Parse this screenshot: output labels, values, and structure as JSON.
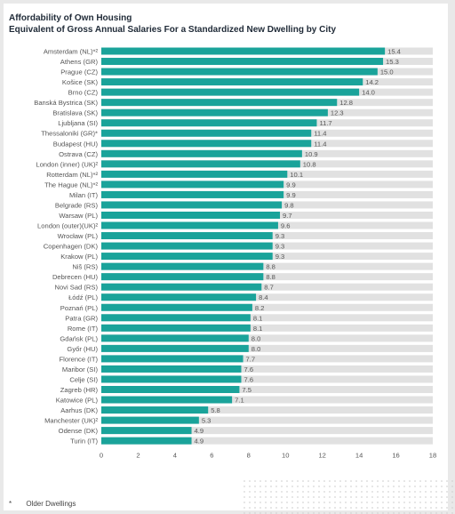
{
  "chart_data": {
    "type": "bar",
    "orientation": "horizontal",
    "title": "Affordability of Own Housing",
    "subtitle": "Equivalent of Gross Annual Salaries For a Standardized New Dwelling by City",
    "categories": [
      "Amsterdam (NL)*²",
      "Athens (GR)",
      "Prague (CZ)",
      "Košice (SK)",
      "Brno (CZ)",
      "Banská Bystrica (SK)",
      "Bratislava (SK)",
      "Ljubljana (SI)",
      "Thessaloniki (GR)*",
      "Budapest (HU)",
      "Ostrava (CZ)",
      "London (inner) (UK)²",
      "Rotterdam (NL)*²",
      "The Hague (NL)*²",
      "Milan (IT)",
      "Belgrade (RS)",
      "Warsaw (PL)",
      "London (outer)(UK)²",
      "Wrocław (PL)",
      "Copenhagen (DK)",
      "Krakow (PL)",
      "Niš (RS)",
      "Debrecen (HU)",
      "Novi Sad (RS)",
      "Łódź (PL)",
      "Poznań (PL)",
      "Patra (GR)",
      "Rome (IT)",
      "Gdańsk (PL)",
      "Győr (HU)",
      "Florence (IT)",
      "Maribor (SI)",
      "Celje (SI)",
      "Zagreb (HR)",
      "Katowice (PL)",
      "Aarhus (DK)",
      "Manchester (UK)²",
      "Odense (DK)",
      "Turin (IT)"
    ],
    "values": [
      15.4,
      15.3,
      15.0,
      14.2,
      14.0,
      12.8,
      12.3,
      11.7,
      11.4,
      11.4,
      10.9,
      10.8,
      10.1,
      9.9,
      9.9,
      9.8,
      9.7,
      9.6,
      9.3,
      9.3,
      9.3,
      8.8,
      8.8,
      8.7,
      8.4,
      8.2,
      8.1,
      8.1,
      8.0,
      8.0,
      7.7,
      7.6,
      7.6,
      7.5,
      7.1,
      5.8,
      5.3,
      4.9,
      4.9
    ],
    "value_labels": [
      "15.4",
      "15.3",
      "15.0",
      "14.2",
      "14.0",
      "12.8",
      "12.3",
      "11.7",
      "11.4",
      "11.4",
      "10.9",
      "10.8",
      "10.1",
      "9.9",
      "9.9",
      "9.8",
      "9.7",
      "9.6",
      "9.3",
      "9.3",
      "9.3",
      "8.8",
      "8.8",
      "8.7",
      "8.4",
      "8.2",
      "8.1",
      "8.1",
      "8.0",
      "8.0",
      "7.7",
      "7.6",
      "7.6",
      "7.5",
      "7.1",
      "5.8",
      "5.3",
      "4.9",
      "4.9"
    ],
    "xlim": [
      0,
      18
    ],
    "xticks": [
      "0",
      "2",
      "4",
      "6",
      "8",
      "10",
      "12",
      "14",
      "16",
      "18"
    ],
    "grid": false,
    "background_track": true,
    "colors": {
      "bar": "#1aa39a",
      "track": "#e1e1e1",
      "label": "#555555",
      "value": "#555555"
    }
  },
  "footnote": {
    "symbol": "*",
    "text": "Older Dwellings"
  }
}
